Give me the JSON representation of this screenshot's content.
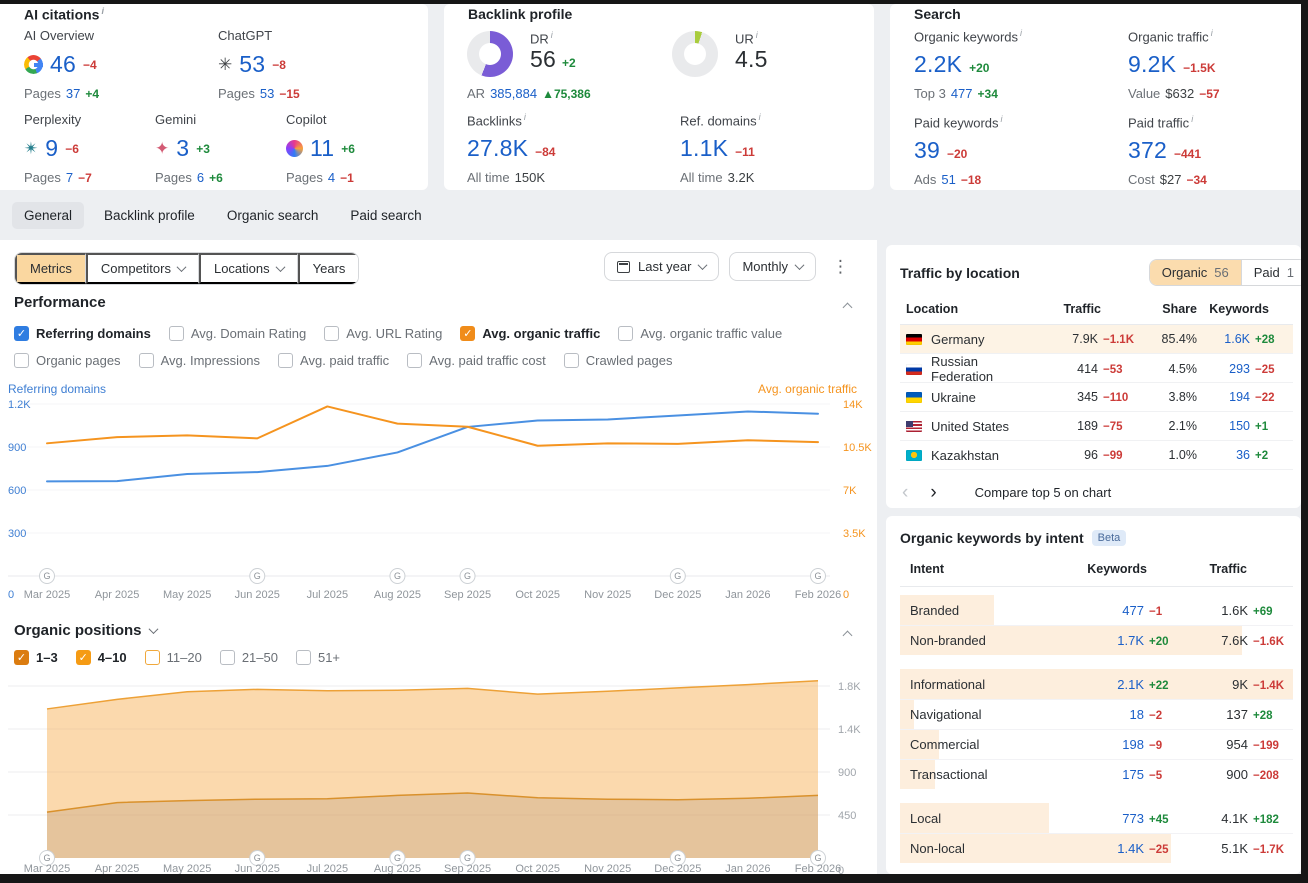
{
  "colors": {
    "link_blue": "#1a5fc8",
    "negative_red": "#cc3b38",
    "positive_green": "#1e8a3c",
    "accent_orange": "#f5941f",
    "line_blue": "#4a90e2",
    "dr_purple": "#7a5cd6",
    "ur_green": "#a9cc3d",
    "selected_tan": "#fbdcae",
    "intent_bar": "#fdeedd",
    "row_highlight": "#fdf3e5"
  },
  "cards": {
    "ai_citations": {
      "title": "AI citations",
      "items": [
        {
          "name": "AI Overview",
          "icon": "google-icon",
          "value": "46",
          "diff": "−4",
          "pages_label": "Pages",
          "pages_value": "37",
          "pages_diff": "+4"
        },
        {
          "name": "ChatGPT",
          "icon": "chatgpt-icon",
          "value": "53",
          "diff": "−8",
          "pages_label": "Pages",
          "pages_value": "53",
          "pages_diff": "−15"
        },
        {
          "name": "Perplexity",
          "icon": "perplexity-icon",
          "value": "9",
          "diff": "−6",
          "pages_label": "Pages",
          "pages_value": "7",
          "pages_diff": "−7"
        },
        {
          "name": "Gemini",
          "icon": "gemini-icon",
          "value": "3",
          "diff": "+3",
          "pages_label": "Pages",
          "pages_value": "6",
          "pages_diff": "+6"
        },
        {
          "name": "Copilot",
          "icon": "copilot-icon",
          "value": "11",
          "diff": "+6",
          "pages_label": "Pages",
          "pages_value": "4",
          "pages_diff": "−1"
        }
      ]
    },
    "backlink_profile": {
      "title": "Backlink profile",
      "dr": {
        "label": "DR",
        "value": "56",
        "diff": "+2",
        "percent": 56,
        "ar_label": "AR",
        "ar_value": "385,884",
        "ar_diff": "▲75,386"
      },
      "ur": {
        "label": "UR",
        "value": "4.5",
        "percent": 5
      },
      "backlinks": {
        "label": "Backlinks",
        "value": "27.8K",
        "diff": "−84",
        "alltime_label": "All time",
        "alltime_value": "150K"
      },
      "ref_domains": {
        "label": "Ref. domains",
        "value": "1.1K",
        "diff": "−11",
        "alltime_label": "All time",
        "alltime_value": "3.2K"
      }
    },
    "search": {
      "title": "Search",
      "metrics": [
        {
          "label": "Organic keywords",
          "value": "2.2K",
          "diff": "+20",
          "sub_label": "Top 3",
          "sub_value": "477",
          "sub_value_color": "blue",
          "sub_diff": "+34"
        },
        {
          "label": "Organic traffic",
          "value": "9.2K",
          "diff": "−1.5K",
          "sub_label": "Value",
          "sub_value": "$632",
          "sub_value_color": "dark",
          "sub_diff": "−57"
        },
        {
          "label": "Paid keywords",
          "value": "39",
          "diff": "−20",
          "sub_label": "Ads",
          "sub_value": "51",
          "sub_value_color": "blue",
          "sub_diff": "−18"
        },
        {
          "label": "Paid traffic",
          "value": "372",
          "diff": "−441",
          "sub_label": "Cost",
          "sub_value": "$27",
          "sub_value_color": "dark",
          "sub_diff": "−34"
        }
      ]
    }
  },
  "tabs": [
    {
      "label": "General",
      "selected": true
    },
    {
      "label": "Backlink profile",
      "selected": false
    },
    {
      "label": "Organic search",
      "selected": false
    },
    {
      "label": "Paid search",
      "selected": false
    }
  ],
  "toolbar": {
    "segments": [
      {
        "label": "Metrics",
        "selected": true,
        "chevron": false
      },
      {
        "label": "Competitors",
        "selected": false,
        "chevron": true
      },
      {
        "label": "Locations",
        "selected": false,
        "chevron": true
      },
      {
        "label": "Years",
        "selected": false,
        "chevron": false
      }
    ],
    "period_button": "Last year",
    "granularity_button": "Monthly"
  },
  "performance": {
    "title": "Performance",
    "legend_left": "Referring domains",
    "legend_right": "Avg. organic traffic",
    "checkboxes": [
      {
        "label": "Referring domains",
        "checked": true,
        "color": "#2f7de1"
      },
      {
        "label": "Avg. Domain Rating",
        "checked": false
      },
      {
        "label": "Avg. URL Rating",
        "checked": false
      },
      {
        "label": "Avg. organic traffic",
        "checked": true,
        "color": "#f08c1a"
      },
      {
        "label": "Avg. organic traffic value",
        "checked": false
      },
      {
        "label": "Organic pages",
        "checked": false
      },
      {
        "label": "Avg. Impressions",
        "checked": false
      },
      {
        "label": "Avg. paid traffic",
        "checked": false
      },
      {
        "label": "Avg. paid traffic cost",
        "checked": false
      },
      {
        "label": "Crawled pages",
        "checked": false
      }
    ]
  },
  "organic_positions": {
    "title": "Organic positions",
    "checkboxes": [
      {
        "label": "1–3",
        "checked": true,
        "color": "#db7c10"
      },
      {
        "label": "4–10",
        "checked": true,
        "color": "#f59b14"
      },
      {
        "label": "11–20",
        "checked": false,
        "border": "#f0a83c"
      },
      {
        "label": "21–50",
        "checked": false
      },
      {
        "label": "51+",
        "checked": false
      }
    ]
  },
  "traffic_by_location": {
    "title": "Traffic by location",
    "tabs": [
      {
        "label": "Organic",
        "count": "56",
        "selected": true
      },
      {
        "label": "Paid",
        "count": "1",
        "selected": false
      }
    ],
    "columns": [
      "Location",
      "Traffic",
      "Share",
      "Keywords"
    ],
    "rows": [
      {
        "flag": "de",
        "name": "Germany",
        "traffic": "7.9K",
        "traffic_diff": "−1.1K",
        "share": "85.4%",
        "keywords": "1.6K",
        "keywords_diff": "+28",
        "highlight": true
      },
      {
        "flag": "ru",
        "name": "Russian Federation",
        "traffic": "414",
        "traffic_diff": "−53",
        "share": "4.5%",
        "keywords": "293",
        "keywords_diff": "−25",
        "highlight": false
      },
      {
        "flag": "ua",
        "name": "Ukraine",
        "traffic": "345",
        "traffic_diff": "−110",
        "share": "3.8%",
        "keywords": "194",
        "keywords_diff": "−22",
        "highlight": false
      },
      {
        "flag": "us",
        "name": "United States",
        "traffic": "189",
        "traffic_diff": "−75",
        "share": "2.1%",
        "keywords": "150",
        "keywords_diff": "+1",
        "highlight": false
      },
      {
        "flag": "kz",
        "name": "Kazakhstan",
        "traffic": "96",
        "traffic_diff": "−99",
        "share": "1.0%",
        "keywords": "36",
        "keywords_diff": "+2",
        "highlight": false
      }
    ],
    "compare_link": "Compare top 5 on chart"
  },
  "keywords_by_intent": {
    "title": "Organic keywords by intent",
    "badge": "Beta",
    "columns": [
      "Intent",
      "Keywords",
      "Traffic"
    ],
    "groups": [
      [
        {
          "label": "Branded",
          "keywords": "477",
          "keywords_diff": "−1",
          "traffic": "1.6K",
          "traffic_diff": "+69",
          "bar_pct": 24
        },
        {
          "label": "Non-branded",
          "keywords": "1.7K",
          "keywords_diff": "+20",
          "traffic": "7.6K",
          "traffic_diff": "−1.6K",
          "bar_pct": 87
        }
      ],
      [
        {
          "label": "Informational",
          "keywords": "2.1K",
          "keywords_diff": "+22",
          "traffic": "9K",
          "traffic_diff": "−1.4K",
          "bar_pct": 100
        },
        {
          "label": "Navigational",
          "keywords": "18",
          "keywords_diff": "−2",
          "traffic": "137",
          "traffic_diff": "+28",
          "bar_pct": 3.5
        },
        {
          "label": "Commercial",
          "keywords": "198",
          "keywords_diff": "−9",
          "traffic": "954",
          "traffic_diff": "−199",
          "bar_pct": 10
        },
        {
          "label": "Transactional",
          "keywords": "175",
          "keywords_diff": "−5",
          "traffic": "900",
          "traffic_diff": "−208",
          "bar_pct": 9
        }
      ],
      [
        {
          "label": "Local",
          "keywords": "773",
          "keywords_diff": "+45",
          "traffic": "4.1K",
          "traffic_diff": "+182",
          "bar_pct": 38
        },
        {
          "label": "Non-local",
          "keywords": "1.4K",
          "keywords_diff": "−25",
          "traffic": "5.1K",
          "traffic_diff": "−1.7K",
          "bar_pct": 69
        }
      ]
    ]
  },
  "chart_data": [
    {
      "type": "line",
      "title": "Performance: referring domains vs avg. organic traffic",
      "x": [
        "Mar 2025",
        "Apr 2025",
        "May 2025",
        "Jun 2025",
        "Jul 2025",
        "Aug 2025",
        "Sep 2025",
        "Oct 2025",
        "Nov 2025",
        "Dec 2025",
        "Jan 2026",
        "Feb 2026"
      ],
      "series": [
        {
          "name": "Referring domains",
          "axis": "left",
          "color": "#4a90e2",
          "values": [
            660,
            662,
            712,
            725,
            768,
            862,
            1040,
            1085,
            1092,
            1120,
            1148,
            1132
          ]
        },
        {
          "name": "Avg. organic traffic",
          "axis": "right",
          "color": "#f5941f",
          "values": [
            10800,
            11300,
            11450,
            11200,
            13800,
            12400,
            12150,
            10600,
            10800,
            10750,
            11050,
            10900
          ]
        }
      ],
      "left_axis": {
        "ticks": [
          "0",
          "300",
          "600",
          "900",
          "1.2K"
        ],
        "tick_values": [
          0,
          300,
          600,
          900,
          1200
        ],
        "unit_per_step": 300
      },
      "right_axis": {
        "ticks": [
          "0",
          "3.5K",
          "7K",
          "10.5K",
          "14K"
        ],
        "tick_values": [
          0,
          3500,
          7000,
          10500,
          14000
        ],
        "unit_per_step": 3500
      },
      "google_update_months": [
        0,
        3,
        5,
        6,
        9,
        11
      ],
      "legend_position": "top"
    },
    {
      "type": "area",
      "title": "Organic positions distribution (stacked)",
      "x": [
        "Mar 2025",
        "Apr 2025",
        "May 2025",
        "Jun 2025",
        "Jul 2025",
        "Aug 2025",
        "Sep 2025",
        "Oct 2025",
        "Nov 2025",
        "Dec 2025",
        "Jan 2026",
        "Feb 2026"
      ],
      "series": [
        {
          "name": "1–3",
          "fill": "rgba(213,160,95,0.62)",
          "stroke": "#d9912c",
          "values": [
            480,
            580,
            600,
            615,
            620,
            655,
            680,
            630,
            615,
            610,
            625,
            655
          ]
        },
        {
          "name": "4–10",
          "fill": "rgba(247,186,106,0.55)",
          "stroke": "#eda137",
          "values": [
            1080,
            1080,
            1140,
            1150,
            1130,
            1100,
            1095,
            1085,
            1130,
            1170,
            1190,
            1200
          ]
        }
      ],
      "right_axis": {
        "ticks": [
          "0",
          "450",
          "900",
          "1.4K",
          "1.8K"
        ],
        "tick_values": [
          0,
          450,
          900,
          1350,
          1800
        ],
        "unit_per_step": 450
      },
      "google_update_months": [
        0,
        3,
        5,
        6,
        9,
        11
      ],
      "stacked": true
    }
  ]
}
